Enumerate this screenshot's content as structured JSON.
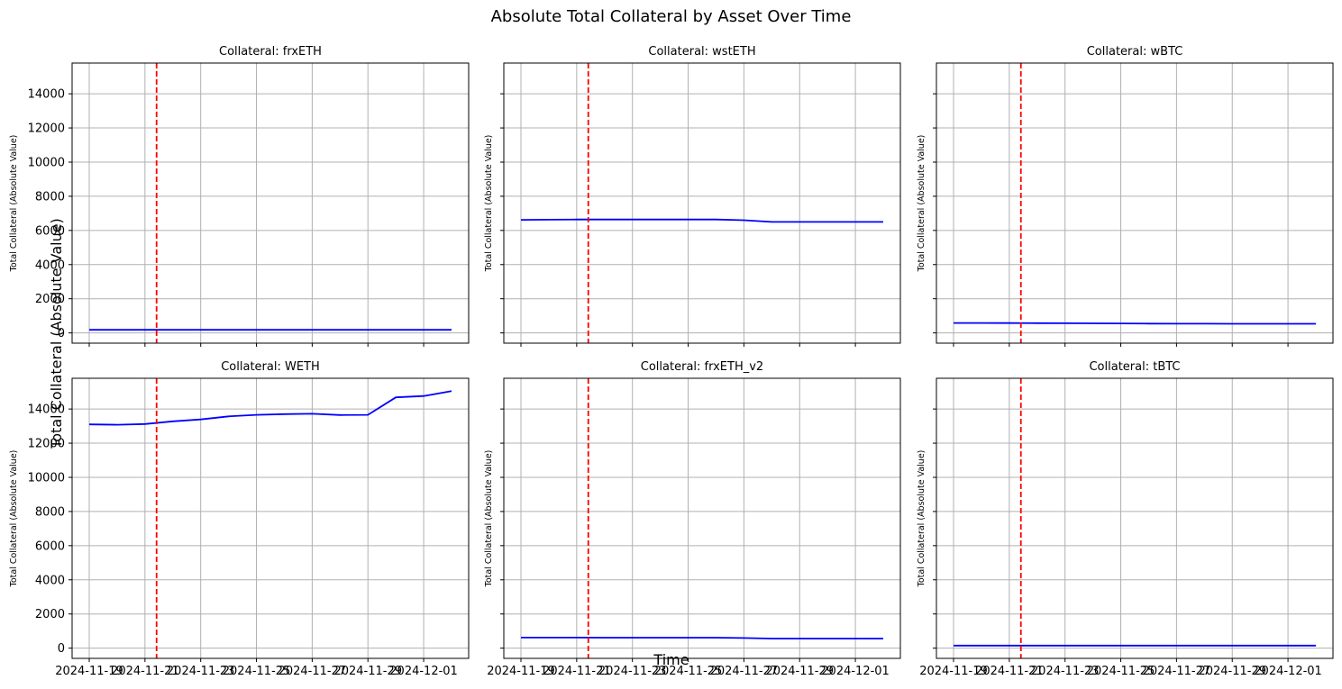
{
  "figure": {
    "title": "Absolute Total Collateral by Asset Over Time",
    "xlabel": "Time",
    "ylabel": "Total Collateral (Absolute Value)"
  },
  "chart_data": [
    {
      "type": "line",
      "title": "Collateral: frxETH",
      "xlabel": "",
      "ylabel": "Total Collateral (Absolute Value)",
      "x": [
        "2024-11-19",
        "2024-11-20",
        "2024-11-21",
        "2024-11-22",
        "2024-11-23",
        "2024-11-24",
        "2024-11-25",
        "2024-11-26",
        "2024-11-27",
        "2024-11-28",
        "2024-11-29",
        "2024-11-30",
        "2024-12-01",
        "2024-12-02"
      ],
      "series": [
        {
          "values": [
            180,
            180,
            180,
            180,
            180,
            180,
            180,
            180,
            180,
            180,
            180,
            180,
            180,
            180
          ],
          "color": "#0000ff"
        }
      ],
      "vline": {
        "x": "2024-11-21T10:00",
        "color": "#ff0000",
        "style": "dashed"
      },
      "ylim": [
        -600,
        15800
      ],
      "xticks": [
        "2024-11-19",
        "2024-11-21",
        "2024-11-23",
        "2024-11-25",
        "2024-11-27",
        "2024-11-29",
        "2024-12-01"
      ],
      "yticks": [
        0,
        2000,
        4000,
        6000,
        8000,
        10000,
        12000,
        14000
      ],
      "show_xticklabels": false,
      "show_yticklabels": true,
      "grid": true
    },
    {
      "type": "line",
      "title": "Collateral: wstETH",
      "xlabel": "",
      "ylabel": "Total Collateral (Absolute Value)",
      "x": [
        "2024-11-19",
        "2024-11-20",
        "2024-11-21",
        "2024-11-22",
        "2024-11-23",
        "2024-11-24",
        "2024-11-25",
        "2024-11-26",
        "2024-11-27",
        "2024-11-28",
        "2024-11-29",
        "2024-11-30",
        "2024-12-01",
        "2024-12-02"
      ],
      "series": [
        {
          "values": [
            6620,
            6630,
            6640,
            6640,
            6640,
            6640,
            6640,
            6640,
            6600,
            6500,
            6500,
            6500,
            6500,
            6500
          ],
          "color": "#0000ff"
        }
      ],
      "vline": {
        "x": "2024-11-21T10:00",
        "color": "#ff0000",
        "style": "dashed"
      },
      "ylim": [
        -600,
        15800
      ],
      "xticks": [
        "2024-11-19",
        "2024-11-21",
        "2024-11-23",
        "2024-11-25",
        "2024-11-27",
        "2024-11-29",
        "2024-12-01"
      ],
      "yticks": [
        0,
        2000,
        4000,
        6000,
        8000,
        10000,
        12000,
        14000
      ],
      "show_xticklabels": false,
      "show_yticklabels": false,
      "grid": true
    },
    {
      "type": "line",
      "title": "Collateral: wBTC",
      "xlabel": "",
      "ylabel": "Total Collateral (Absolute Value)",
      "x": [
        "2024-11-19",
        "2024-11-20",
        "2024-11-21",
        "2024-11-22",
        "2024-11-23",
        "2024-11-24",
        "2024-11-25",
        "2024-11-26",
        "2024-11-27",
        "2024-11-28",
        "2024-11-29",
        "2024-11-30",
        "2024-12-01",
        "2024-12-02"
      ],
      "series": [
        {
          "values": [
            580,
            580,
            575,
            570,
            565,
            560,
            555,
            545,
            540,
            540,
            535,
            535,
            535,
            535
          ],
          "color": "#0000ff"
        }
      ],
      "vline": {
        "x": "2024-11-21T10:00",
        "color": "#ff0000",
        "style": "dashed"
      },
      "ylim": [
        -600,
        15800
      ],
      "xticks": [
        "2024-11-19",
        "2024-11-21",
        "2024-11-23",
        "2024-11-25",
        "2024-11-27",
        "2024-11-29",
        "2024-12-01"
      ],
      "yticks": [
        0,
        2000,
        4000,
        6000,
        8000,
        10000,
        12000,
        14000
      ],
      "show_xticklabels": false,
      "show_yticklabels": false,
      "grid": true
    },
    {
      "type": "line",
      "title": "Collateral: WETH",
      "xlabel": "",
      "ylabel": "Total Collateral (Absolute Value)",
      "x": [
        "2024-11-19",
        "2024-11-20",
        "2024-11-21",
        "2024-11-22",
        "2024-11-23",
        "2024-11-24",
        "2024-11-25",
        "2024-11-26",
        "2024-11-27",
        "2024-11-28",
        "2024-11-29",
        "2024-11-30",
        "2024-12-01",
        "2024-12-02"
      ],
      "series": [
        {
          "values": [
            13100,
            13080,
            13120,
            13280,
            13390,
            13570,
            13660,
            13700,
            13720,
            13650,
            13660,
            14680,
            14760,
            15050
          ],
          "color": "#0000ff"
        }
      ],
      "vline": {
        "x": "2024-11-21T10:00",
        "color": "#ff0000",
        "style": "dashed"
      },
      "ylim": [
        -600,
        15800
      ],
      "xticks": [
        "2024-11-19",
        "2024-11-21",
        "2024-11-23",
        "2024-11-25",
        "2024-11-27",
        "2024-11-29",
        "2024-12-01"
      ],
      "xticklabels": [
        "2024-11-19",
        "2024-11-21",
        "2024-11-23",
        "2024-11-25",
        "2024-11-27",
        "2024-11-29",
        "2024-12-01"
      ],
      "yticks": [
        0,
        2000,
        4000,
        6000,
        8000,
        10000,
        12000,
        14000
      ],
      "show_xticklabels": true,
      "show_yticklabels": true,
      "grid": true
    },
    {
      "type": "line",
      "title": "Collateral: frxETH_v2",
      "xlabel": "",
      "ylabel": "Total Collateral (Absolute Value)",
      "x": [
        "2024-11-19",
        "2024-11-20",
        "2024-11-21",
        "2024-11-22",
        "2024-11-23",
        "2024-11-24",
        "2024-11-25",
        "2024-11-26",
        "2024-11-27",
        "2024-11-28",
        "2024-11-29",
        "2024-11-30",
        "2024-12-01",
        "2024-12-02"
      ],
      "series": [
        {
          "values": [
            620,
            620,
            620,
            615,
            612,
            612,
            612,
            612,
            590,
            560,
            560,
            560,
            560,
            560
          ],
          "color": "#0000ff"
        }
      ],
      "vline": {
        "x": "2024-11-21T10:00",
        "color": "#ff0000",
        "style": "dashed"
      },
      "ylim": [
        -600,
        15800
      ],
      "xticks": [
        "2024-11-19",
        "2024-11-21",
        "2024-11-23",
        "2024-11-25",
        "2024-11-27",
        "2024-11-29",
        "2024-12-01"
      ],
      "xticklabels": [
        "2024-11-19",
        "2024-11-21",
        "2024-11-23",
        "2024-11-25",
        "2024-11-27",
        "2024-11-29",
        "2024-12-01"
      ],
      "yticks": [
        0,
        2000,
        4000,
        6000,
        8000,
        10000,
        12000,
        14000
      ],
      "show_xticklabels": true,
      "show_yticklabels": false,
      "grid": true
    },
    {
      "type": "line",
      "title": "Collateral: tBTC",
      "xlabel": "",
      "ylabel": "Total Collateral (Absolute Value)",
      "x": [
        "2024-11-19",
        "2024-11-20",
        "2024-11-21",
        "2024-11-22",
        "2024-11-23",
        "2024-11-24",
        "2024-11-25",
        "2024-11-26",
        "2024-11-27",
        "2024-11-28",
        "2024-11-29",
        "2024-11-30",
        "2024-12-01",
        "2024-12-02"
      ],
      "series": [
        {
          "values": [
            150,
            150,
            150,
            150,
            150,
            150,
            150,
            150,
            150,
            150,
            150,
            150,
            150,
            150
          ],
          "color": "#0000ff"
        }
      ],
      "vline": {
        "x": "2024-11-21T10:00",
        "color": "#ff0000",
        "style": "dashed"
      },
      "ylim": [
        -600,
        15800
      ],
      "xticks": [
        "2024-11-19",
        "2024-11-21",
        "2024-11-23",
        "2024-11-25",
        "2024-11-27",
        "2024-11-29",
        "2024-12-01"
      ],
      "xticklabels": [
        "2024-11-19",
        "2024-11-21",
        "2024-11-23",
        "2024-11-25",
        "2024-11-27",
        "2024-11-29",
        "2024-12-01"
      ],
      "yticks": [
        0,
        2000,
        4000,
        6000,
        8000,
        10000,
        12000,
        14000
      ],
      "show_xticklabels": true,
      "show_yticklabels": false,
      "grid": true
    }
  ]
}
